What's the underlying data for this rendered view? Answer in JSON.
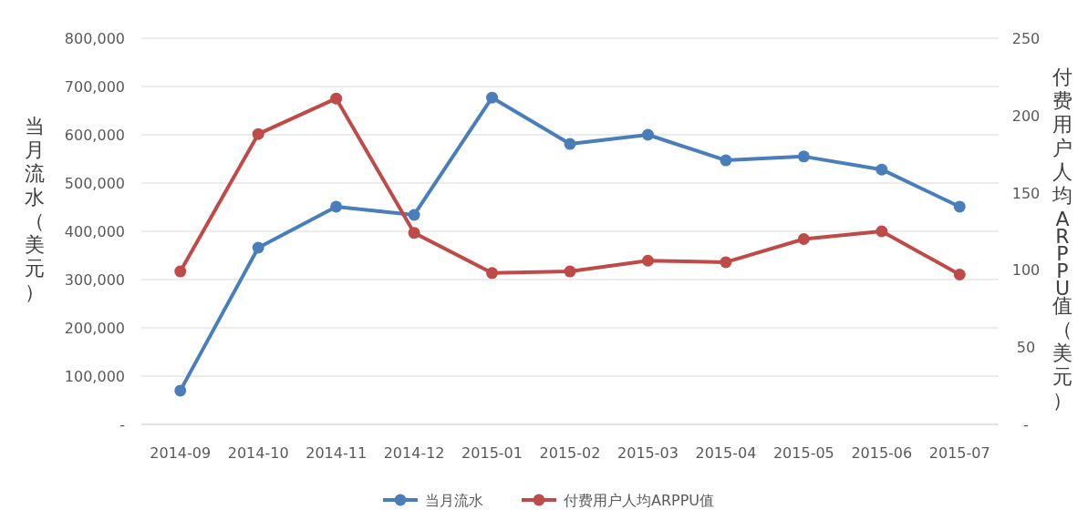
{
  "chart_data": {
    "type": "line",
    "ylabel": "当月流水（美元）",
    "y2label": "付费用户人均ARPPU值（美元）",
    "categories": [
      "2014-09",
      "2014-10",
      "2014-11",
      "2014-12",
      "2015-01",
      "2015-02",
      "2015-03",
      "2015-04",
      "2015-05",
      "2015-06",
      "2015-07"
    ],
    "series": [
      {
        "name": "当月流水",
        "color": "#4a7ebb",
        "values": [
          70000,
          366000,
          451000,
          434000,
          677000,
          581000,
          600000,
          547000,
          555000,
          528000,
          451000
        ]
      },
      {
        "name": "付费用户人均ARPPU值",
        "color": "#be4b48",
        "axis": "y2",
        "values": [
          99,
          188,
          211,
          124,
          98,
          99,
          106,
          105,
          120,
          125,
          97
        ]
      }
    ],
    "ylim": [
      0,
      800000
    ],
    "yticks": [
      {
        "value": 0,
        "label": "-"
      },
      {
        "value": 100000,
        "label": "100,000"
      },
      {
        "value": 200000,
        "label": "200,000"
      },
      {
        "value": 300000,
        "label": "300,000"
      },
      {
        "value": 400000,
        "label": "400,000"
      },
      {
        "value": 500000,
        "label": "500,000"
      },
      {
        "value": 600000,
        "label": "600,000"
      },
      {
        "value": 700000,
        "label": "700,000"
      },
      {
        "value": 800000,
        "label": "800,000"
      }
    ],
    "y2lim": [
      0,
      250
    ],
    "y2ticks": [
      {
        "value": 0,
        "label": "-"
      },
      50,
      100,
      150,
      200,
      250
    ],
    "grid": "y",
    "legend": "bottom",
    "marker": "circle",
    "line_style": "solid"
  }
}
